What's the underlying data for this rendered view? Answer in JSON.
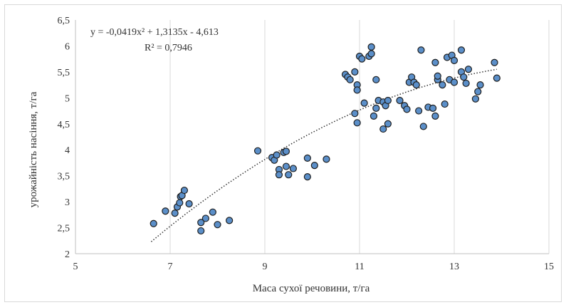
{
  "chart_data": {
    "type": "scatter",
    "title": "",
    "xlabel": "Маса сухої речовини, т/га",
    "ylabel": "урожайність насіння, т/га",
    "xlim": [
      5,
      15
    ],
    "ylim": [
      2,
      6.5
    ],
    "xticks": [
      5,
      7,
      9,
      11,
      13,
      15
    ],
    "yticks": [
      2,
      2.5,
      3,
      3.5,
      4,
      4.5,
      5,
      5.5,
      6,
      6.5
    ],
    "decimal_separator": ",",
    "grid": "vertical",
    "legend": "none",
    "colors": {
      "marker_fill": "#5b8fc9",
      "marker_edge": "#1f1f1f",
      "trendline": "#333333",
      "grid": "#d9d9d9"
    },
    "trendline": {
      "kind": "polynomial",
      "coefficients": [
        -0.0419,
        1.3135,
        -4.613
      ],
      "x_range": [
        6.6,
        13.9
      ],
      "equation_label": "y = -0,0419x² + 1,3135x - 4,613",
      "r2_label": "R² = 0,7946"
    },
    "series": [
      {
        "points": [
          [
            6.65,
            2.58
          ],
          [
            6.9,
            2.82
          ],
          [
            7.1,
            2.78
          ],
          [
            7.15,
            2.9
          ],
          [
            7.2,
            2.98
          ],
          [
            7.22,
            3.1
          ],
          [
            7.25,
            3.12
          ],
          [
            7.3,
            3.22
          ],
          [
            7.4,
            2.96
          ],
          [
            7.65,
            2.6
          ],
          [
            7.65,
            2.44
          ],
          [
            7.75,
            2.68
          ],
          [
            7.9,
            2.8
          ],
          [
            8.0,
            2.56
          ],
          [
            8.25,
            2.64
          ],
          [
            8.85,
            3.98
          ],
          [
            9.15,
            3.85
          ],
          [
            9.2,
            3.8
          ],
          [
            9.25,
            3.9
          ],
          [
            9.3,
            3.62
          ],
          [
            9.3,
            3.52
          ],
          [
            9.4,
            3.95
          ],
          [
            9.45,
            3.97
          ],
          [
            9.45,
            3.68
          ],
          [
            9.5,
            3.52
          ],
          [
            9.6,
            3.64
          ],
          [
            9.9,
            3.84
          ],
          [
            9.9,
            3.48
          ],
          [
            10.05,
            3.7
          ],
          [
            10.3,
            3.82
          ],
          [
            10.7,
            5.45
          ],
          [
            10.75,
            5.4
          ],
          [
            10.8,
            5.35
          ],
          [
            10.9,
            5.5
          ],
          [
            10.9,
            4.7
          ],
          [
            10.95,
            4.52
          ],
          [
            10.95,
            5.25
          ],
          [
            10.95,
            5.15
          ],
          [
            11.0,
            5.8
          ],
          [
            11.05,
            5.75
          ],
          [
            11.1,
            4.9
          ],
          [
            11.2,
            5.8
          ],
          [
            11.25,
            5.98
          ],
          [
            11.25,
            5.85
          ],
          [
            11.3,
            4.65
          ],
          [
            11.35,
            4.8
          ],
          [
            11.35,
            5.35
          ],
          [
            11.4,
            4.95
          ],
          [
            11.5,
            4.92
          ],
          [
            11.5,
            4.4
          ],
          [
            11.55,
            4.85
          ],
          [
            11.6,
            4.5
          ],
          [
            11.6,
            4.95
          ],
          [
            11.85,
            4.95
          ],
          [
            11.95,
            4.85
          ],
          [
            12.0,
            4.78
          ],
          [
            12.05,
            5.3
          ],
          [
            12.1,
            5.4
          ],
          [
            12.15,
            5.3
          ],
          [
            12.2,
            5.25
          ],
          [
            12.25,
            4.75
          ],
          [
            12.3,
            5.92
          ],
          [
            12.35,
            4.45
          ],
          [
            12.45,
            4.82
          ],
          [
            12.55,
            4.8
          ],
          [
            12.6,
            5.68
          ],
          [
            12.6,
            4.65
          ],
          [
            12.65,
            5.35
          ],
          [
            12.65,
            5.42
          ],
          [
            12.75,
            5.25
          ],
          [
            12.8,
            4.88
          ],
          [
            12.85,
            5.78
          ],
          [
            12.9,
            5.35
          ],
          [
            12.95,
            5.82
          ],
          [
            13.0,
            5.72
          ],
          [
            13.0,
            5.3
          ],
          [
            13.15,
            5.92
          ],
          [
            13.15,
            5.5
          ],
          [
            13.2,
            5.4
          ],
          [
            13.25,
            5.28
          ],
          [
            13.3,
            5.55
          ],
          [
            13.45,
            4.98
          ],
          [
            13.5,
            5.12
          ],
          [
            13.55,
            5.25
          ],
          [
            13.85,
            5.68
          ],
          [
            13.9,
            5.38
          ]
        ]
      }
    ]
  }
}
